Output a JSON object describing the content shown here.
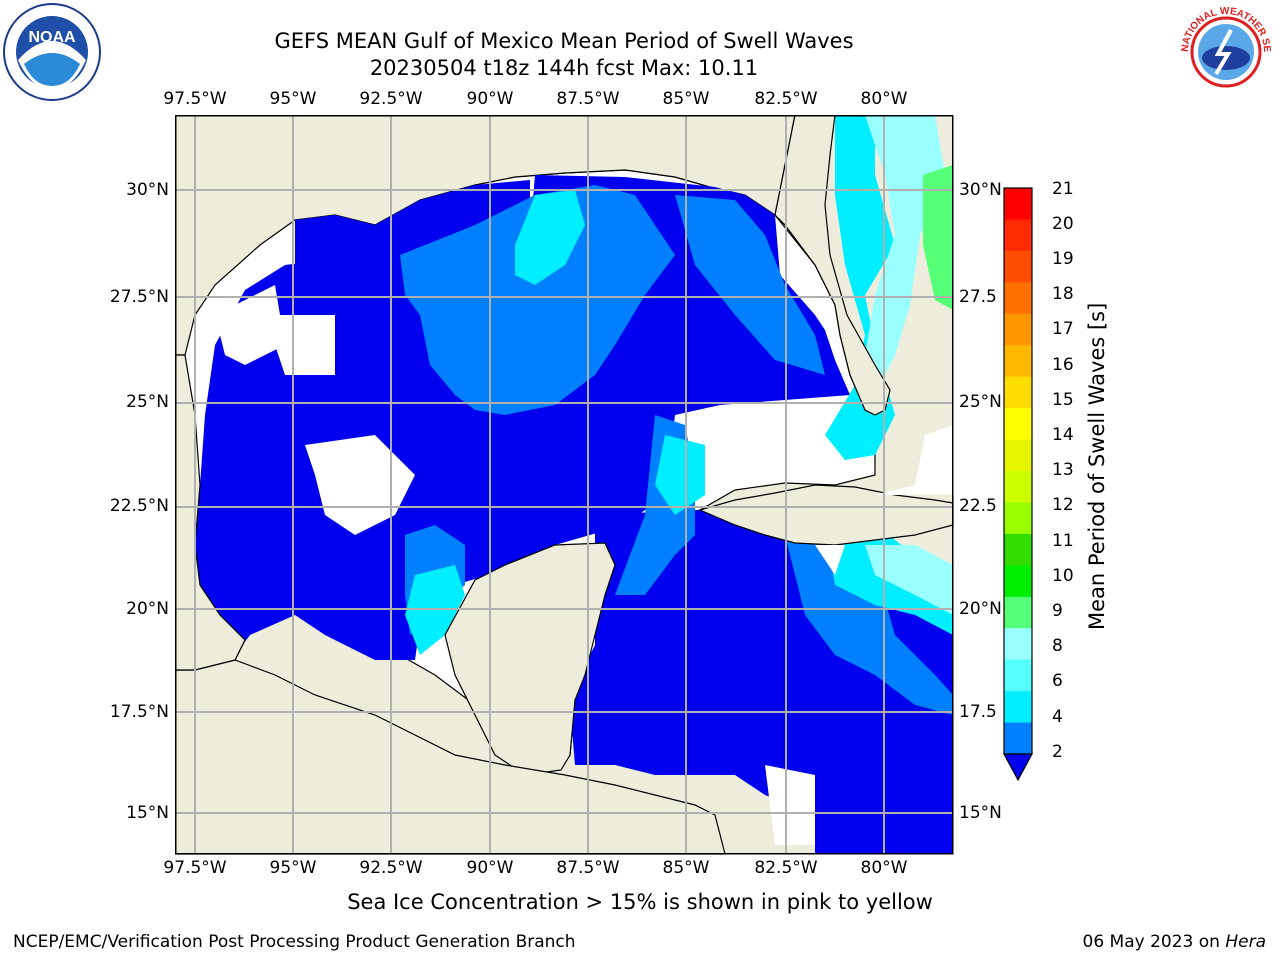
{
  "title": {
    "line1": "GEFS MEAN Gulf of Mexico Mean Period of Swell Waves",
    "line2": "20230504 t18z 144h fcst   Max: 10.11"
  },
  "map": {
    "lon_ticks": [
      "97.5°W",
      "95°W",
      "92.5°W",
      "90°W",
      "87.5°W",
      "85°W",
      "82.5°W",
      "80°W"
    ],
    "lat_ticks_left": [
      "30°N",
      "27.5°N",
      "25°N",
      "22.5°N",
      "20°N",
      "17.5°N",
      "15°N"
    ],
    "lat_ticks_right": [
      "30°N",
      "27.5",
      "25°N",
      "22.5",
      "20°N",
      "17.5",
      "15°N"
    ]
  },
  "colorbar": {
    "label": "Mean Period of Swell Waves [s]",
    "ticks": [
      "21",
      "20",
      "19",
      "18",
      "17",
      "16",
      "15",
      "14",
      "13",
      "12",
      "11",
      "10",
      "9",
      "8",
      "6",
      "4",
      "2"
    ],
    "colors": [
      "#ff0000",
      "#ff2a00",
      "#ff4d00",
      "#ff7000",
      "#ff9500",
      "#ffb800",
      "#ffdd00",
      "#ffff00",
      "#e6f500",
      "#ccff00",
      "#99ff00",
      "#33dd00",
      "#00ee00",
      "#55ff77",
      "#99ffff",
      "#55ffff",
      "#00eeff",
      "#0080ff"
    ],
    "extend_color": "#0000ee"
  },
  "note": "Sea Ice Concentration > 15% is shown in pink to yellow",
  "footer": {
    "left": "NCEP/EMC/Verification Post Processing Product Generation Branch",
    "right_date": "06 May 2023 on ",
    "right_host": "Hera"
  },
  "logos": {
    "noaa": "NOAA",
    "nws": "NATIONAL WEATHER SERVICE"
  }
}
